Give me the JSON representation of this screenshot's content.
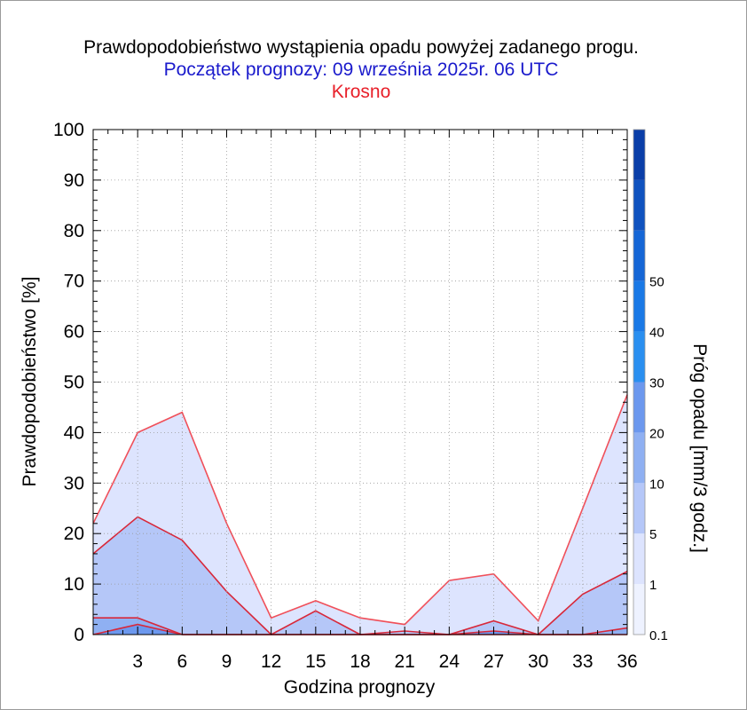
{
  "chart_data": {
    "type": "area",
    "title": "Prawdopodobieństwo wystąpienia opadu powyżej zadanego progu.",
    "subtitle": "Początek prognozy: 09 września 2025r. 06 UTC",
    "location": "Krosno",
    "xlabel": "Godzina prognozy",
    "ylabel": "Prawdopodobieństwo [%]",
    "colorbar_label": "Próg opadu [mm/3 godz.]",
    "xlim": [
      0,
      36
    ],
    "ylim": [
      0,
      100
    ],
    "xticks": [
      3,
      6,
      9,
      12,
      15,
      18,
      21,
      24,
      27,
      30,
      33,
      36
    ],
    "yticks": [
      0,
      10,
      20,
      30,
      40,
      50,
      60,
      70,
      80,
      90,
      100
    ],
    "x": [
      0,
      3,
      6,
      9,
      12,
      15,
      18,
      21,
      24,
      27,
      30,
      33,
      36
    ],
    "series": [
      {
        "threshold": 0.1,
        "color": "#dde4fe",
        "values": [
          22,
          40,
          44,
          22,
          3.3,
          6.7,
          3.3,
          2,
          10.7,
          12,
          2.7,
          25,
          47.5
        ]
      },
      {
        "threshold": 1,
        "color": "#b5c7f8",
        "values": [
          16,
          23.3,
          18.7,
          8.5,
          0,
          4.7,
          0,
          0.7,
          0,
          2.7,
          0,
          8,
          12.5
        ]
      },
      {
        "threshold": 5,
        "color": "#8fb0f2",
        "values": [
          3.3,
          3.3,
          0,
          0,
          0,
          0,
          0,
          0,
          0,
          0,
          0,
          0,
          1.3
        ]
      },
      {
        "threshold": 10,
        "color": "#6c98ee",
        "values": [
          0,
          2,
          0,
          0,
          0,
          0,
          0,
          0,
          0,
          0.7,
          0,
          0,
          0
        ]
      }
    ],
    "colorbar": {
      "labels": [
        "0.1",
        "1",
        "5",
        "10",
        "20",
        "30",
        "40",
        "50"
      ],
      "colors": [
        "#eef2ff",
        "#dde4fe",
        "#b5c7f8",
        "#8fb0f2",
        "#6c98ee",
        "#2a8ff0",
        "#1a79e6",
        "#1566d6",
        "#0f52bf",
        "#0a3ea8"
      ]
    }
  }
}
